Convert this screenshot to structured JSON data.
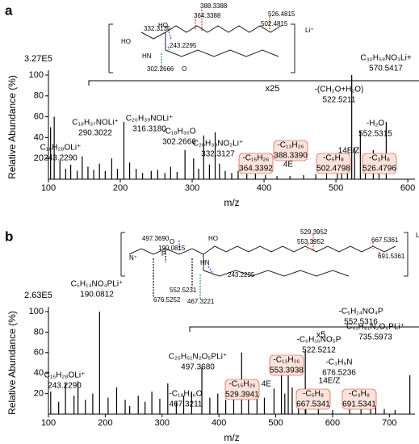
{
  "chart_data": [
    {
      "type": "spectrum",
      "panel": "a",
      "xlabel": "m/z",
      "ylabel": "Relative Abundance (%)",
      "scale_note": "3.27E5",
      "zoom": "x25",
      "xlim": [
        100,
        610
      ],
      "ylim": [
        0,
        100
      ],
      "xticks": [
        100,
        200,
        300,
        400,
        500,
        600
      ],
      "yticks": [
        20,
        40,
        60,
        80,
        100
      ],
      "color": "#000000",
      "x": [
        103,
        108,
        116,
        124,
        131,
        140,
        147,
        155,
        163,
        171,
        179,
        188,
        196,
        205,
        213,
        222,
        231,
        243,
        252,
        262,
        270,
        279,
        290,
        302,
        309,
        316,
        324,
        332,
        338,
        346,
        355,
        364,
        376,
        388,
        402,
        418,
        436,
        455,
        472,
        487,
        502,
        508,
        516,
        522,
        526,
        534,
        541,
        552,
        560,
        570
      ],
      "values": [
        50,
        60,
        18,
        10,
        14,
        8,
        22,
        12,
        9,
        15,
        8,
        20,
        10,
        55,
        16,
        10,
        6,
        8,
        9,
        6,
        12,
        7,
        28,
        20,
        10,
        42,
        14,
        45,
        15,
        8,
        6,
        8,
        5,
        6,
        4,
        3,
        3,
        4,
        5,
        8,
        22,
        14,
        10,
        100,
        30,
        46,
        12,
        28,
        8,
        55
      ],
      "annotations": [
        {
          "lines": [
            "-(CH₂O+H₂O)",
            "522.5211"
          ],
          "color": "#000000"
        },
        {
          "lines": [
            "C₃₀H₅₉NO₃Li+",
            "570.5417"
          ],
          "color": "#000000"
        },
        {
          "lines": [
            "-H₂O",
            "552.5315"
          ],
          "color": "#000000"
        },
        {
          "lines": [
            "C₂₀H₃₉NOLi⁺",
            "316.3180"
          ],
          "color": "#000000"
        },
        {
          "lines": [
            "C₁₈H₃₇NOLi⁺",
            "290.3022"
          ],
          "color": "#000000"
        },
        {
          "lines": [
            "-C₁₈H₃₆O",
            "302.2666"
          ],
          "color": "#1a9a50"
        },
        {
          "lines": [
            "C₂₀H₃₉NO₂Li⁺",
            "332.3127"
          ],
          "color": "#1f4fd6"
        },
        {
          "lines": [
            "C₁₆H₂₈OLi⁺",
            "243.2290"
          ],
          "color": "#1f4fd6"
        },
        {
          "lines": [
            "-C₁₅H₂₆",
            "364.3392"
          ],
          "color": "#d03a1a",
          "boxed": true
        },
        {
          "lines": [
            "-C₁₃H₂₆",
            "388.3390"
          ],
          "color": "#d03a1a",
          "boxed": true
        },
        {
          "lines": [
            "-C₅H₈",
            "502.4798"
          ],
          "color": "#d03a1a",
          "boxed": true
        },
        {
          "lines": [
            "-C₃H₈",
            "526.4796"
          ],
          "color": "#d03a1a",
          "boxed": true
        },
        {
          "lines": [
            "4E"
          ],
          "color": "#d03a1a"
        },
        {
          "lines": [
            "14E/Z"
          ],
          "color": "#d03a1a"
        }
      ],
      "structure_labels": [
        {
          "text": "388.3388",
          "color": "#d03a1a"
        },
        {
          "text": "364.3388",
          "color": "#d03a1a"
        },
        {
          "text": "526.4815",
          "color": "#d03a1a"
        },
        {
          "text": "502.4815",
          "color": "#d03a1a"
        },
        {
          "text": "332.3135",
          "color": "#1f4fd6"
        },
        {
          "text": "243.2295",
          "color": "#1f4fd6"
        },
        {
          "text": "302.2666",
          "color": "#1a9a50"
        },
        {
          "text": "HO",
          "color": "#000000"
        },
        {
          "text": "HO",
          "color": "#000000"
        },
        {
          "text": "HN",
          "color": "#000000"
        },
        {
          "text": "O",
          "color": "#000000"
        },
        {
          "text": "Li⁺",
          "color": "#000000"
        }
      ]
    },
    {
      "type": "spectrum",
      "panel": "b",
      "xlabel": "m/z",
      "ylabel": "Relative Abundance (%)",
      "scale_note": "2.63E5",
      "zoom": "x5",
      "xlim": [
        100,
        745
      ],
      "ylim": [
        0,
        100
      ],
      "xticks": [
        100,
        200,
        300,
        400,
        500,
        600,
        700
      ],
      "yticks": [
        20,
        40,
        60,
        80,
        100
      ],
      "color": "#000000",
      "x": [
        104,
        118,
        130,
        145,
        152,
        165,
        178,
        190,
        205,
        220,
        235,
        243,
        258,
        270,
        282,
        296,
        310,
        325,
        338,
        352,
        370,
        384,
        398,
        412,
        426,
        440,
        452,
        467,
        480,
        497,
        510,
        516,
        522,
        529,
        540,
        552,
        553,
        575,
        600,
        630,
        650,
        667,
        676,
        691,
        710,
        736
      ],
      "values": [
        22,
        12,
        30,
        18,
        32,
        14,
        20,
        100,
        16,
        26,
        14,
        8,
        18,
        12,
        22,
        15,
        30,
        12,
        18,
        22,
        46,
        16,
        20,
        14,
        18,
        60,
        22,
        30,
        16,
        25,
        38,
        20,
        50,
        26,
        14,
        62,
        20,
        6,
        4,
        5,
        6,
        6,
        20,
        5,
        4,
        38
      ],
      "annotations": [
        {
          "lines": [
            "C₅H₁₄NO₄PLi⁺",
            "190.0812"
          ],
          "color": "#000000"
        },
        {
          "lines": [
            "-C₅H₁₄NO₄P",
            "552.5316"
          ],
          "color": "#000000"
        },
        {
          "lines": [
            "-C₆H₁₆NO₅P",
            "522.5212"
          ],
          "color": "#000000"
        },
        {
          "lines": [
            "C₄₁H₈₁N₂O₆PLi⁺",
            "735.5973"
          ],
          "color": "#000000"
        },
        {
          "lines": [
            "-C₃H₉N",
            "676.5236"
          ],
          "color": "#000000"
        },
        {
          "lines": [
            "C₂₅H₅₁N₂O₅PLi⁺",
            "497.3680"
          ],
          "color": "#1f4fd6"
        },
        {
          "lines": [
            "C₁₆H₂₈OLi⁺",
            "243.2290"
          ],
          "color": "#1f4fd6"
        },
        {
          "lines": [
            "-C₁₈H₃₆O",
            "467.3211"
          ],
          "color": "#1a9a50"
        },
        {
          "lines": [
            "-C₁₅H₂₆",
            "529.3941"
          ],
          "color": "#d03a1a",
          "boxed": true
        },
        {
          "lines": [
            "-C₁₃H₂₆",
            "553.3938"
          ],
          "color": "#d03a1a",
          "boxed": true
        },
        {
          "lines": [
            "-C₅H₈",
            "667.5341"
          ],
          "color": "#d03a1a",
          "boxed": true
        },
        {
          "lines": [
            "-C₃H₈",
            "691.5341"
          ],
          "color": "#d03a1a",
          "boxed": true
        },
        {
          "lines": [
            "4E"
          ],
          "color": "#d03a1a"
        },
        {
          "lines": [
            "14E/Z"
          ],
          "color": "#d03a1a"
        }
      ],
      "structure_labels": [
        {
          "text": "529.3952",
          "color": "#d03a1a"
        },
        {
          "text": "553.3952",
          "color": "#d03a1a"
        },
        {
          "text": "667.5361",
          "color": "#d03a1a"
        },
        {
          "text": "691.5361",
          "color": "#d03a1a"
        },
        {
          "text": "497.3690",
          "color": "#1f4fd6"
        },
        {
          "text": "190.0815",
          "color": "#000000"
        },
        {
          "text": "243.2295",
          "color": "#1f4fd6"
        },
        {
          "text": "552.5231",
          "color": "#000000"
        },
        {
          "text": "676.5252",
          "color": "#000000"
        },
        {
          "text": "467.3221",
          "color": "#1a9a50"
        },
        {
          "text": "HO",
          "color": "#000000"
        },
        {
          "text": "HN",
          "color": "#000000"
        },
        {
          "text": "O",
          "color": "#000000"
        },
        {
          "text": "P",
          "color": "#000000"
        },
        {
          "text": "N⁺",
          "color": "#000000"
        },
        {
          "text": "Li⁺",
          "color": "#000000"
        }
      ]
    }
  ]
}
